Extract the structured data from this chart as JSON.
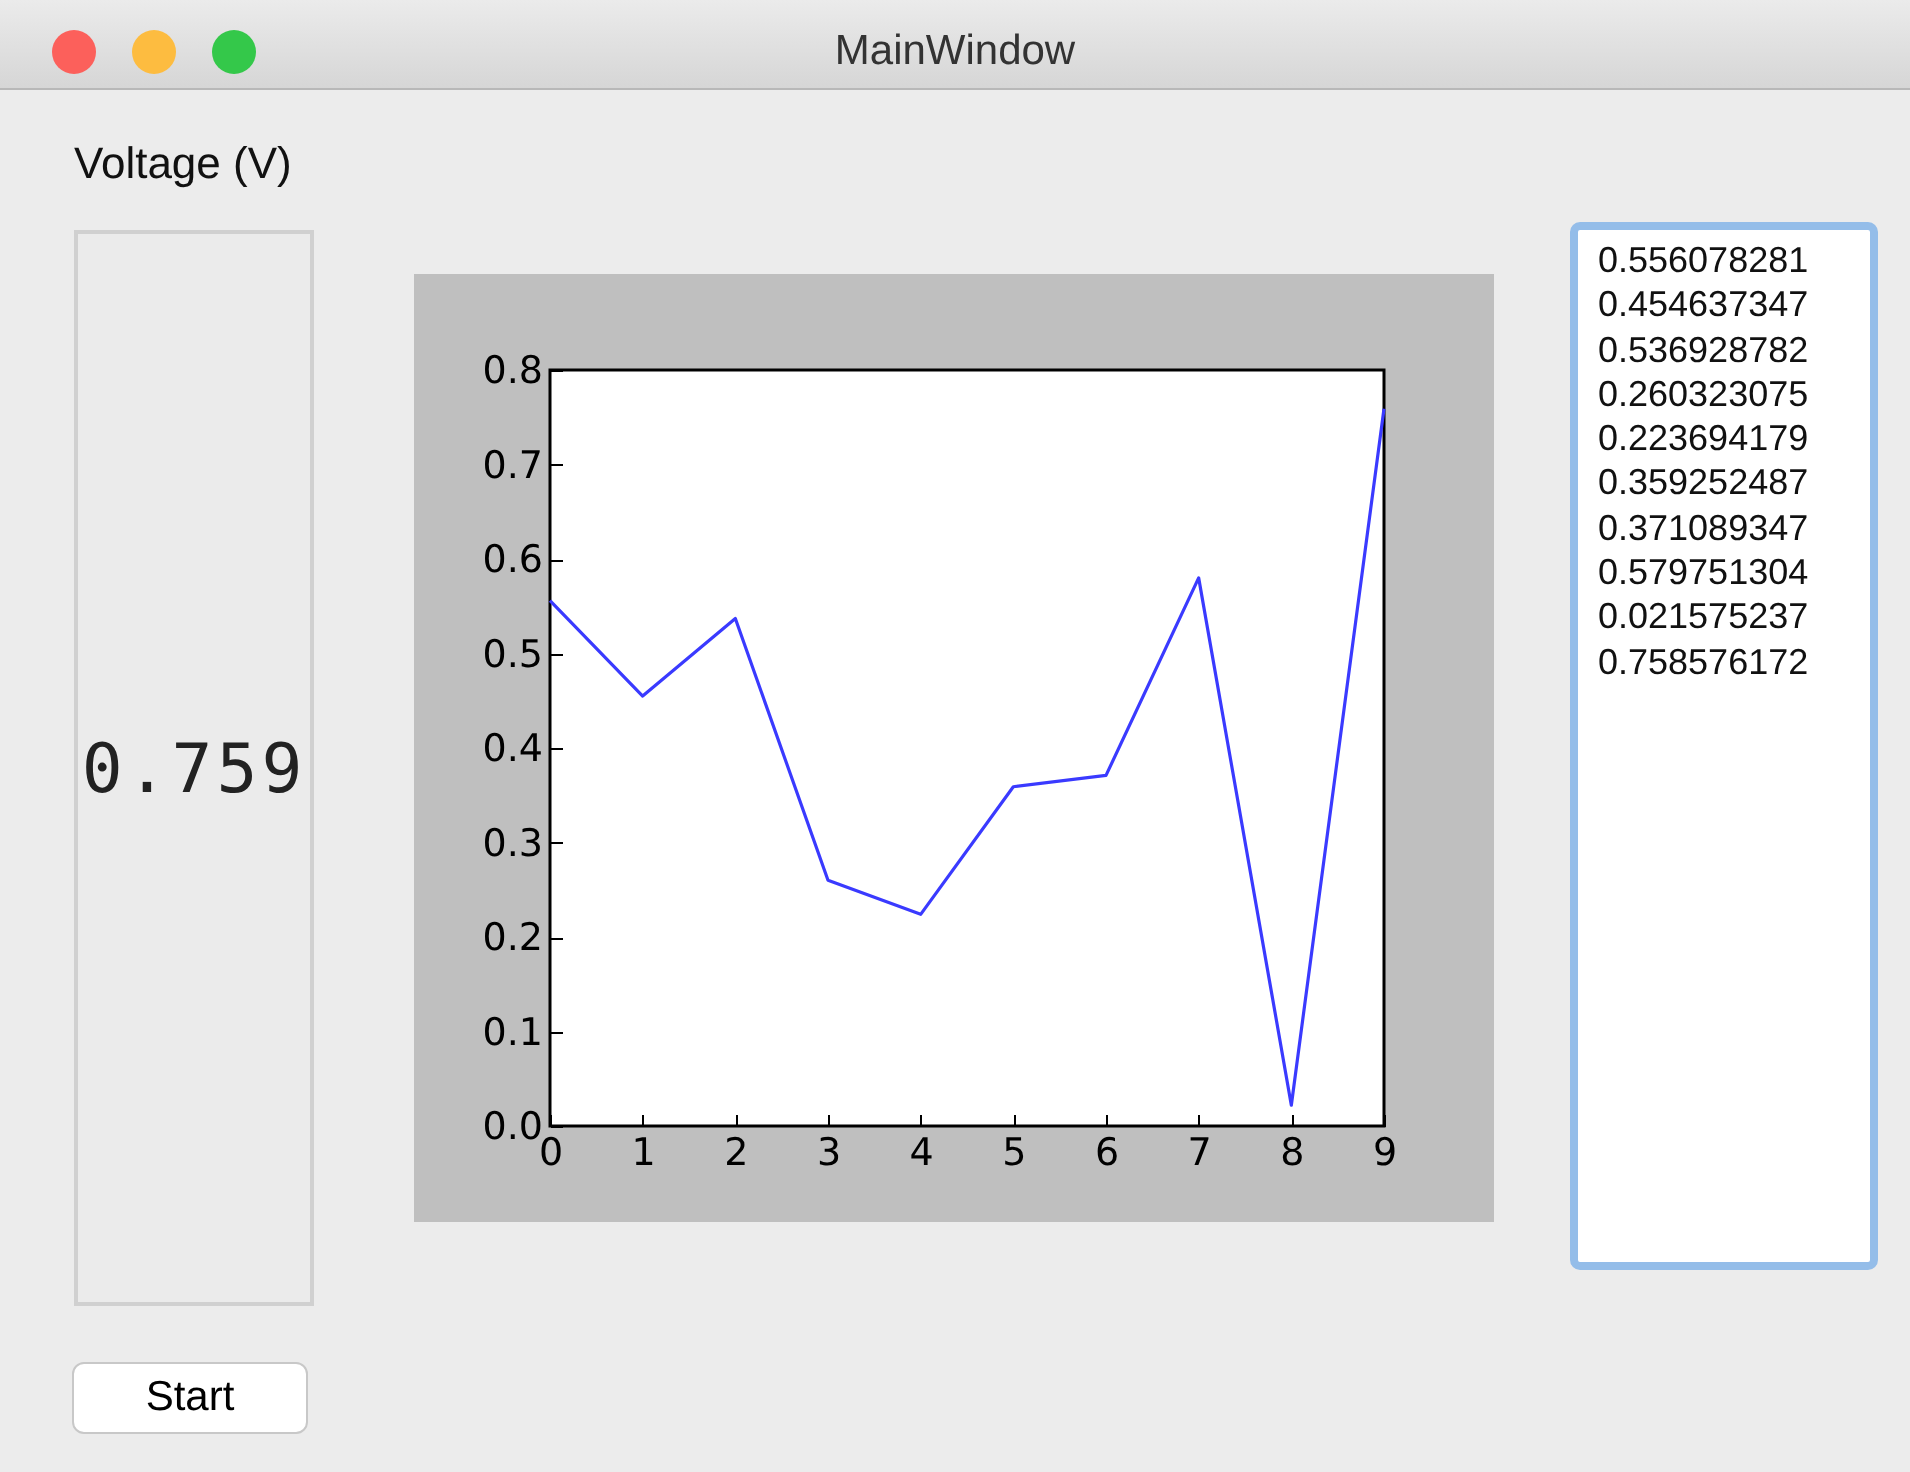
{
  "chart_data": {
    "type": "line",
    "x": [
      0,
      1,
      2,
      3,
      4,
      5,
      6,
      7,
      8,
      9
    ],
    "series": [
      {
        "color": "#3a3aff",
        "values": [
          0.556,
          0.455,
          0.537,
          0.26,
          0.224,
          0.359,
          0.371,
          0.58,
          0.022,
          0.759
        ]
      }
    ],
    "xlim": [
      0,
      9
    ],
    "xticks": [
      0,
      1,
      2,
      3,
      4,
      5,
      6,
      7,
      8,
      9
    ],
    "ylim": [
      0,
      0.8
    ],
    "yticks": [
      {
        "value": 0,
        "label": "0.0"
      },
      {
        "value": 0.1,
        "label": "0.1"
      },
      {
        "value": 0.2,
        "label": "0.2"
      },
      {
        "value": 0.3,
        "label": "0.3"
      },
      {
        "value": 0.4,
        "label": "0.4"
      },
      {
        "value": 0.5,
        "label": "0.5"
      },
      {
        "value": 0.6,
        "label": "0.6"
      },
      {
        "value": 0.7,
        "label": "0.7"
      },
      {
        "value": 0.8,
        "label": "0.8"
      }
    ],
    "grid": false,
    "marker": "none",
    "line_style": "solid",
    "annotations": [
      "MainWindow",
      "Voltage (V)",
      "0.759",
      "Start",
      "0.556078281",
      "0.454637347",
      "0.536928782",
      "0.260323075",
      "0.223694179",
      "0.359252487",
      "0.371089347",
      "0.579751304",
      "0.021575237",
      "0.758576172"
    ]
  }
}
